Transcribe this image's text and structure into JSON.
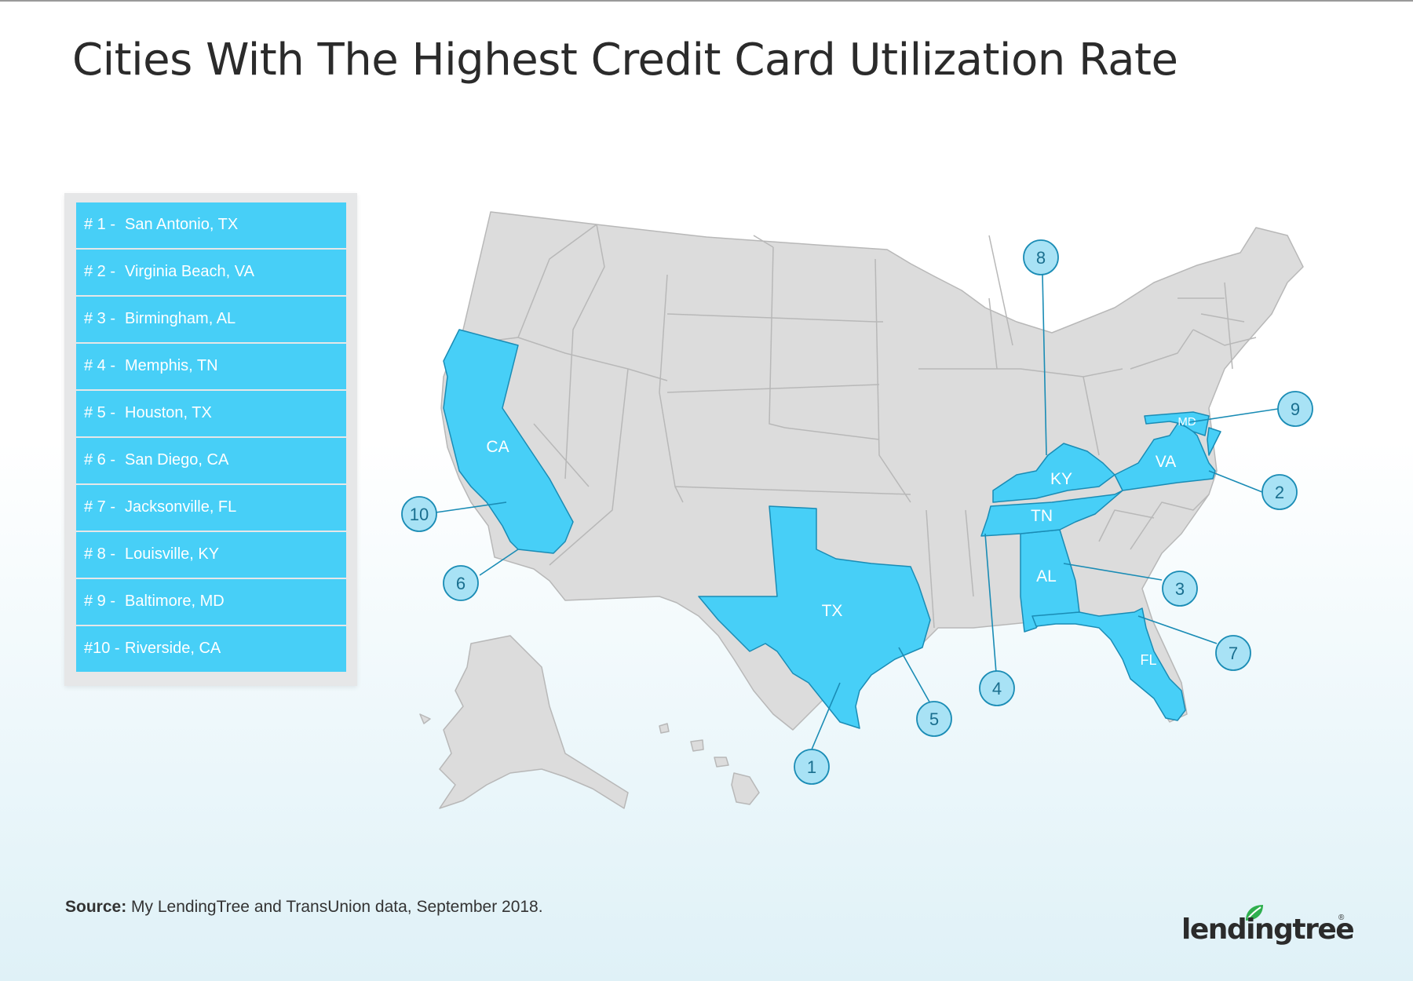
{
  "title": "Cities With The Highest Credit Card Utilization Rate",
  "legend": [
    {
      "rank": "# 1 -",
      "city": "San Antonio, TX"
    },
    {
      "rank": "# 2 -",
      "city": "Virginia Beach, VA"
    },
    {
      "rank": "# 3 -",
      "city": "Birmingham, AL"
    },
    {
      "rank": "# 4 -",
      "city": "Memphis, TN"
    },
    {
      "rank": "# 5 -",
      "city": "Houston, TX"
    },
    {
      "rank": "# 6 -",
      "city": "San Diego, CA"
    },
    {
      "rank": "# 7 -",
      "city": "Jacksonville, FL"
    },
    {
      "rank": "# 8 -",
      "city": "Louisville, KY"
    },
    {
      "rank": "# 9 -",
      "city": "Baltimore, MD"
    },
    {
      "rank": "#10 -",
      "city": "Riverside, CA"
    }
  ],
  "highlighted_states": [
    "CA",
    "TX",
    "AL",
    "TN",
    "KY",
    "VA",
    "MD",
    "FL"
  ],
  "markers": [
    "1",
    "2",
    "3",
    "4",
    "5",
    "6",
    "7",
    "8",
    "9",
    "10"
  ],
  "source": {
    "label": "Source:",
    "text": " My LendingTree and TransUnion data, September 2018."
  },
  "logo": {
    "text": "lendingtree",
    "mark": "®"
  },
  "colors": {
    "highlight": "#47cff7",
    "land": "#dcdcdc",
    "border": "#b8b8b8",
    "marker_fill": "#a8e2f5",
    "marker_stroke": "#1a8cb5",
    "text": "#2b2b2b"
  },
  "icons": [
    "leaf-icon"
  ]
}
